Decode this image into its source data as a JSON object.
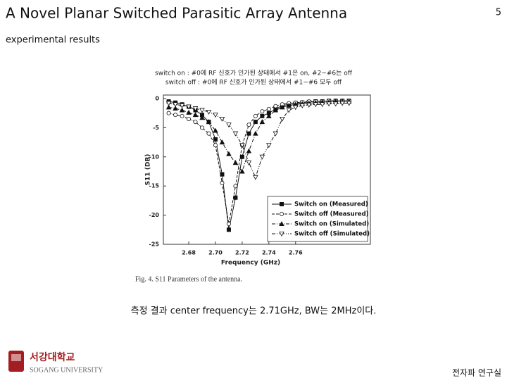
{
  "header": {
    "title": "A Novel Planar Switched Parasitic Array Antenna",
    "page": "5",
    "subtitle": "experimental results"
  },
  "notes": [
    "switch on : #0에 RF 신호가 인가된 상태에서 #1은 on, #2~#6는 off",
    "switch off : #0에 RF 신호가 인가된 상태에서 #1~#6 모두 off"
  ],
  "summary": "측정 결과 center frequency는 2.71GHz, BW는 2MHz이다.",
  "footer": {
    "logo_korean": "서강대학교",
    "logo_english": "SOGANG UNIVERSITY",
    "lab": "전자파 연구실"
  },
  "chart_data": {
    "type": "line",
    "caption": "Fig. 4.    S11 Parameters of the antenna.",
    "x_label": "Frequency (GHz)",
    "y_label": "S11 (DB)",
    "x": [
      2.665,
      2.67,
      2.675,
      2.68,
      2.685,
      2.69,
      2.695,
      2.7,
      2.705,
      2.71,
      2.715,
      2.72,
      2.725,
      2.73,
      2.735,
      2.74,
      2.745,
      2.75,
      2.755,
      2.76,
      2.765,
      2.77,
      2.775,
      2.78,
      2.785,
      2.79,
      2.795,
      2.8
    ],
    "xlim": [
      2.661,
      2.816
    ],
    "xticks": [
      2.68,
      {
        "value": 2.7,
        "label": "2.70"
      },
      2.72,
      2.74,
      2.76
    ],
    "ylim": [
      -25,
      0.6
    ],
    "yticks": [
      0,
      -5,
      -10,
      -15,
      -20,
      -25
    ],
    "legend": "lower right",
    "grid": false,
    "series": [
      {
        "name": "Switch on (Measured)",
        "color": "#111111",
        "marker": "square",
        "marker_fill": true,
        "dash": "solid",
        "values": [
          -0.5,
          -0.7,
          -1,
          -1.4,
          -2,
          -2.8,
          -4,
          -7,
          -13,
          -22.5,
          -17,
          -10,
          -6,
          -4,
          -3,
          -2.5,
          -1.8,
          -1.2,
          -1,
          -0.8,
          -0.7,
          -0.6,
          -0.5,
          -0.5,
          -0.4,
          -0.4,
          -0.4,
          -0.4
        ]
      },
      {
        "name": "Switch off (Measured)",
        "color": "#111111",
        "marker": "circle",
        "marker_fill": false,
        "dash": "dashed",
        "values": [
          -2.5,
          -2.8,
          -3,
          -3.5,
          -4,
          -5,
          -6,
          -8,
          -14.5,
          -21.5,
          -15,
          -8,
          -4.5,
          -3,
          -2.2,
          -1.8,
          -1.3,
          -1,
          -0.8,
          -0.7,
          -0.6,
          -0.5,
          -0.5,
          -0.5,
          -0.4,
          -0.4,
          -0.4,
          -0.4
        ]
      },
      {
        "name": "Switch on (Simulated)",
        "color": "#111111",
        "marker": "triangle",
        "marker_fill": true,
        "dash": "dashdot",
        "values": [
          -1.5,
          -1.7,
          -2,
          -2.4,
          -2.8,
          -3.3,
          -4,
          -5.5,
          -7.5,
          -9.5,
          -11,
          -12.5,
          -9,
          -6,
          -4,
          -3,
          -2,
          -1.5,
          -1.2,
          -1,
          -0.9,
          -0.8,
          -0.7,
          -0.6,
          -0.6,
          -0.5,
          -0.5,
          -0.5
        ]
      },
      {
        "name": "Switch off (Simulated)",
        "color": "#111111",
        "marker": "triangle-down",
        "marker_fill": false,
        "dash": "dashdotdot",
        "values": [
          -0.8,
          -1,
          -1.2,
          -1.4,
          -1.7,
          -2,
          -2.3,
          -2.8,
          -3.5,
          -4.5,
          -6,
          -8,
          -11,
          -13.5,
          -10,
          -8,
          -6,
          -3.5,
          -2,
          -1.5,
          -1.2,
          -1.1,
          -1,
          -1,
          -0.9,
          -0.9,
          -0.8,
          -0.8
        ]
      }
    ]
  }
}
